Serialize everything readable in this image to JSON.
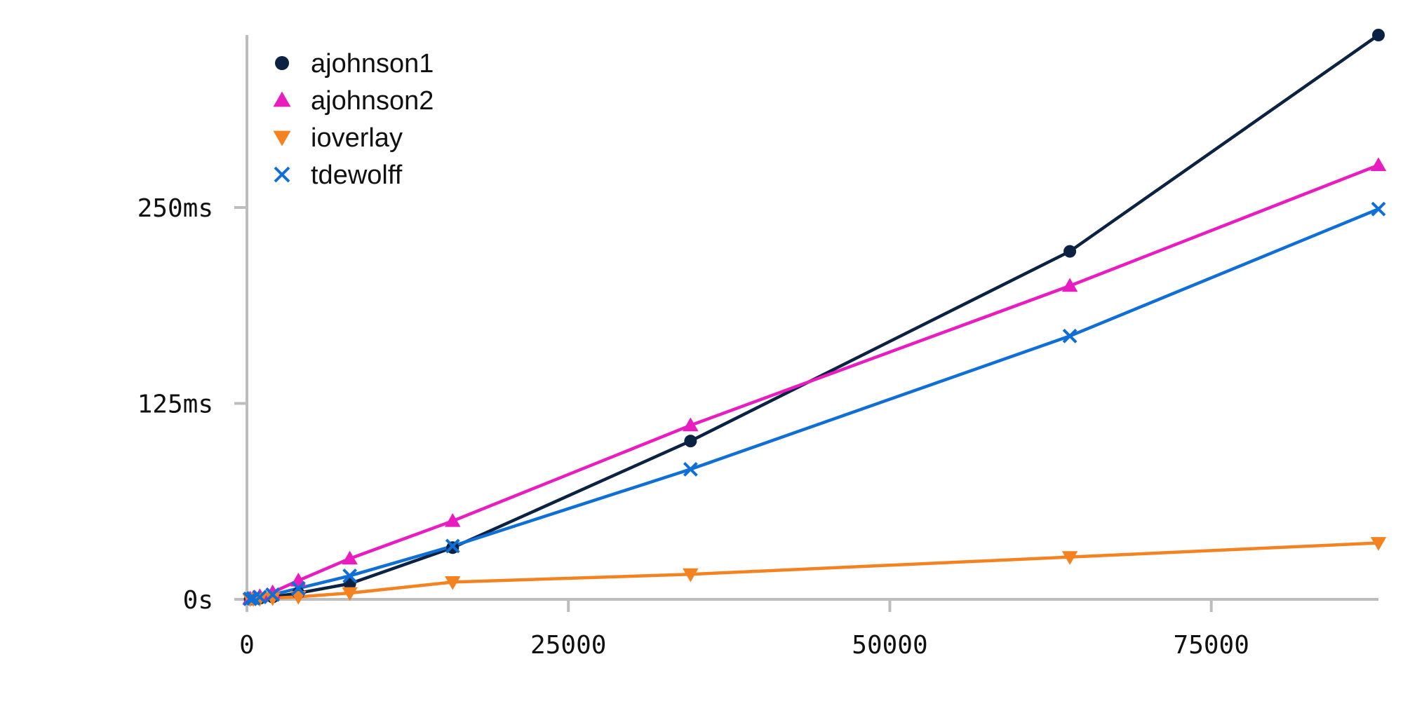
{
  "chart_data": {
    "type": "line",
    "title": "",
    "xlabel": "",
    "ylabel": "",
    "x_ticks": [
      {
        "value": 0,
        "label": "0"
      },
      {
        "value": 25000,
        "label": "25000"
      },
      {
        "value": 50000,
        "label": "50000"
      },
      {
        "value": 75000,
        "label": "75000"
      }
    ],
    "y_ticks": [
      {
        "value": 0,
        "label": "0s"
      },
      {
        "value": 125,
        "label": "125ms"
      },
      {
        "value": 250,
        "label": "250ms"
      }
    ],
    "xlim": [
      0,
      88000
    ],
    "ylim": [
      0,
      360
    ],
    "y_unit": "ms",
    "grid": false,
    "legend_position": "top-left",
    "series": [
      {
        "name": "ajohnson1",
        "color": "#0b2242",
        "marker": "circle",
        "x": [
          250,
          500,
          1000,
          2000,
          4000,
          8000,
          16000,
          34500,
          64000,
          88000
        ],
        "y": [
          0.1,
          0.3,
          0.7,
          1.5,
          4,
          10,
          33,
          101,
          222,
          360
        ]
      },
      {
        "name": "ajohnson2",
        "color": "#e81cbf",
        "marker": "triangle-up",
        "x": [
          250,
          500,
          1000,
          2000,
          4000,
          8000,
          16000,
          34500,
          64000,
          88000
        ],
        "y": [
          0.5,
          1,
          2,
          4.5,
          12,
          26,
          50,
          111,
          200,
          277
        ]
      },
      {
        "name": "ioverlay",
        "color": "#f58220",
        "marker": "triangle-down",
        "x": [
          250,
          500,
          1000,
          2000,
          4000,
          8000,
          16000,
          34500,
          64000,
          88000
        ],
        "y": [
          0.1,
          0.2,
          0.4,
          0.8,
          1.6,
          4,
          11,
          16,
          27,
          36
        ]
      },
      {
        "name": "tdewolff",
        "color": "#0f6fd6",
        "marker": "x",
        "x": [
          250,
          500,
          1000,
          2000,
          4000,
          8000,
          16000,
          34500,
          64000,
          88000
        ],
        "y": [
          0.3,
          0.7,
          1.5,
          3,
          7,
          15,
          34,
          83,
          168,
          249
        ]
      }
    ]
  }
}
